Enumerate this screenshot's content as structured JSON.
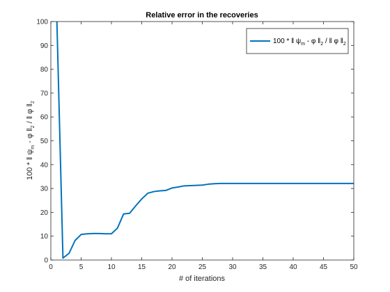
{
  "chart_data": {
    "type": "line",
    "title": "Relative error in the recoveries",
    "xlabel": "# of iterations",
    "ylabel": {
      "prefix": "100 * ‖ ψ",
      "sub1": "m",
      "mid": " - φ ‖",
      "sub2": "2",
      "mid2": " / ‖ φ ‖",
      "sub3": "2"
    },
    "legend_position": "top-right",
    "legend": {
      "prefix": "100 * ‖ ψ",
      "sub1": "m",
      "mid": " - φ ‖",
      "sub2": "2",
      "mid2": " / ‖ φ ‖",
      "sub3": "2"
    },
    "xlim": [
      0,
      50
    ],
    "ylim": [
      0,
      100
    ],
    "xticks": [
      0,
      5,
      10,
      15,
      20,
      25,
      30,
      35,
      40,
      45,
      50
    ],
    "yticks": [
      0,
      10,
      20,
      30,
      40,
      50,
      60,
      70,
      80,
      90,
      100
    ],
    "grid": false,
    "line_color": "#0072BD",
    "series": [
      {
        "x": [
          1,
          2,
          3,
          4,
          5,
          6,
          7,
          8,
          9,
          10,
          11,
          12,
          13,
          14,
          15,
          16,
          17,
          18,
          19,
          20,
          21,
          22,
          23,
          24,
          25,
          26,
          27,
          28,
          29,
          30,
          35,
          40,
          45,
          50
        ],
        "values": [
          100,
          0.8,
          2.8,
          8.2,
          10.7,
          11.0,
          11.1,
          11.1,
          11.0,
          11.0,
          13.4,
          19.3,
          19.6,
          22.7,
          25.6,
          28.0,
          28.7,
          29.0,
          29.2,
          30.2,
          30.6,
          31.1,
          31.2,
          31.3,
          31.4,
          31.8,
          32.0,
          32.1,
          32.1,
          32.1,
          32.1,
          32.1,
          32.1,
          32.1
        ]
      }
    ]
  }
}
